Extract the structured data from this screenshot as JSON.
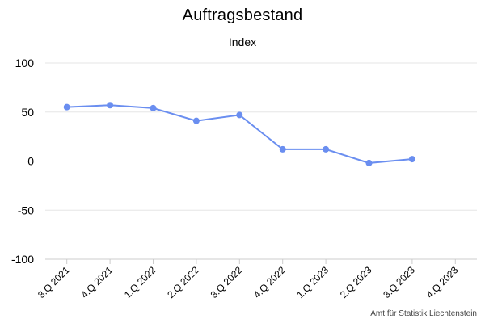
{
  "chart_data": {
    "type": "line",
    "title": "Auftragsbestand",
    "subtitle": "Index",
    "categories": [
      "3.Q 2021",
      "4.Q 2021",
      "1.Q 2022",
      "2.Q 2022",
      "3.Q 2022",
      "4.Q 2022",
      "1.Q 2023",
      "2.Q 2023",
      "3.Q 2023",
      "4.Q 2023"
    ],
    "series": [
      {
        "values": [
          55,
          57,
          54,
          41,
          47,
          12,
          12,
          -2,
          2,
          null
        ],
        "color": "#6a8ef0"
      }
    ],
    "ylim": [
      -100,
      100
    ],
    "yticks": [
      100,
      50,
      0,
      -50,
      -100
    ],
    "grid": true,
    "legend": "none"
  },
  "credit": "Amt für Statistik Liechtenstein"
}
